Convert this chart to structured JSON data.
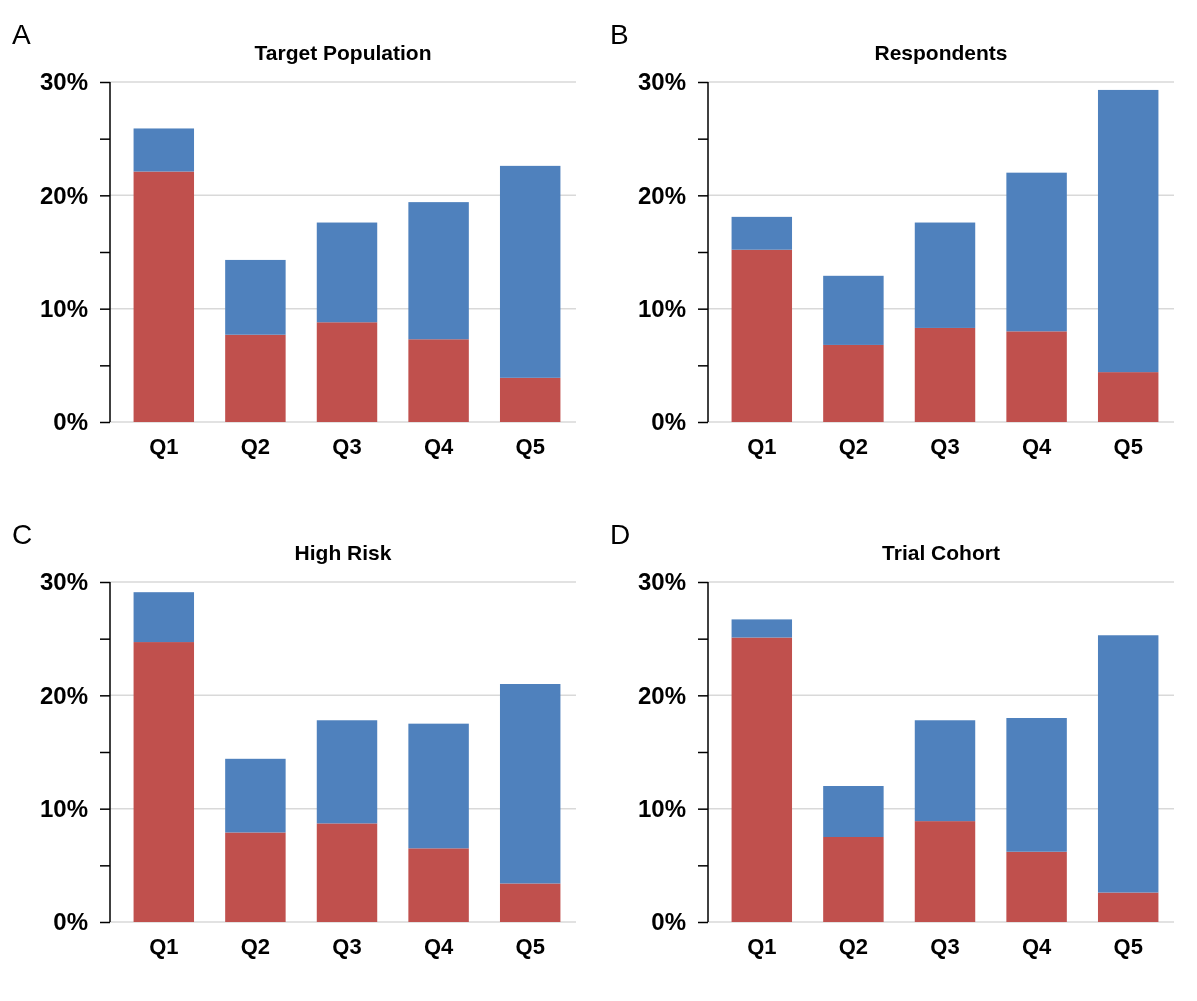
{
  "chart_data": [
    {
      "type": "bar",
      "title": "Target Population",
      "annotations": [
        "A"
      ],
      "categories": [
        "Q1",
        "Q2",
        "Q3",
        "Q4",
        "Q5"
      ],
      "stacked": true,
      "grid": "y",
      "ylim": [
        0,
        30
      ],
      "yticks": [
        {
          "value": 0,
          "label": "0%"
        },
        {
          "value": 5,
          "label": null
        },
        {
          "value": 10,
          "label": "10%"
        },
        {
          "value": 15,
          "label": null
        },
        {
          "value": 20,
          "label": "20%"
        },
        {
          "value": 25,
          "label": null
        },
        {
          "value": 30,
          "label": "30%"
        }
      ],
      "series": [
        {
          "color": "#c0504d",
          "values": [
            22.1,
            7.7,
            8.8,
            7.3,
            3.9
          ]
        },
        {
          "color": "#4f81bd",
          "values": [
            3.8,
            6.6,
            8.8,
            12.1,
            18.7
          ]
        }
      ]
    },
    {
      "type": "bar",
      "title": "Respondents",
      "annotations": [
        "B"
      ],
      "categories": [
        "Q1",
        "Q2",
        "Q3",
        "Q4",
        "Q5"
      ],
      "stacked": true,
      "grid": "y",
      "ylim": [
        0,
        30
      ],
      "yticks": [
        {
          "value": 0,
          "label": "0%"
        },
        {
          "value": 5,
          "label": null
        },
        {
          "value": 10,
          "label": "10%"
        },
        {
          "value": 15,
          "label": null
        },
        {
          "value": 20,
          "label": "20%"
        },
        {
          "value": 25,
          "label": null
        },
        {
          "value": 30,
          "label": "30%"
        }
      ],
      "series": [
        {
          "color": "#c0504d",
          "values": [
            15.2,
            6.8,
            8.3,
            8.0,
            4.4
          ]
        },
        {
          "color": "#4f81bd",
          "values": [
            2.9,
            6.1,
            9.3,
            14.0,
            24.9
          ]
        }
      ]
    },
    {
      "type": "bar",
      "title": "High Risk",
      "annotations": [
        "C"
      ],
      "categories": [
        "Q1",
        "Q2",
        "Q3",
        "Q4",
        "Q5"
      ],
      "stacked": true,
      "grid": "y",
      "ylim": [
        0,
        30
      ],
      "yticks": [
        {
          "value": 0,
          "label": "0%"
        },
        {
          "value": 5,
          "label": null
        },
        {
          "value": 10,
          "label": "10%"
        },
        {
          "value": 15,
          "label": null
        },
        {
          "value": 20,
          "label": "20%"
        },
        {
          "value": 25,
          "label": null
        },
        {
          "value": 30,
          "label": "30%"
        }
      ],
      "series": [
        {
          "color": "#c0504d",
          "values": [
            24.7,
            7.9,
            8.7,
            6.5,
            3.4
          ]
        },
        {
          "color": "#4f81bd",
          "values": [
            4.4,
            6.5,
            9.1,
            11.0,
            17.6
          ]
        }
      ]
    },
    {
      "type": "bar",
      "title": "Trial Cohort",
      "annotations": [
        "D"
      ],
      "categories": [
        "Q1",
        "Q2",
        "Q3",
        "Q4",
        "Q5"
      ],
      "stacked": true,
      "grid": "y",
      "ylim": [
        0,
        30
      ],
      "yticks": [
        {
          "value": 0,
          "label": "0%"
        },
        {
          "value": 5,
          "label": null
        },
        {
          "value": 10,
          "label": "10%"
        },
        {
          "value": 15,
          "label": null
        },
        {
          "value": 20,
          "label": "20%"
        },
        {
          "value": 25,
          "label": null
        },
        {
          "value": 30,
          "label": "30%"
        }
      ],
      "series": [
        {
          "color": "#c0504d",
          "values": [
            25.1,
            7.5,
            8.9,
            6.2,
            2.6
          ]
        },
        {
          "color": "#4f81bd",
          "values": [
            1.6,
            4.5,
            8.9,
            11.8,
            22.7
          ]
        }
      ]
    }
  ]
}
